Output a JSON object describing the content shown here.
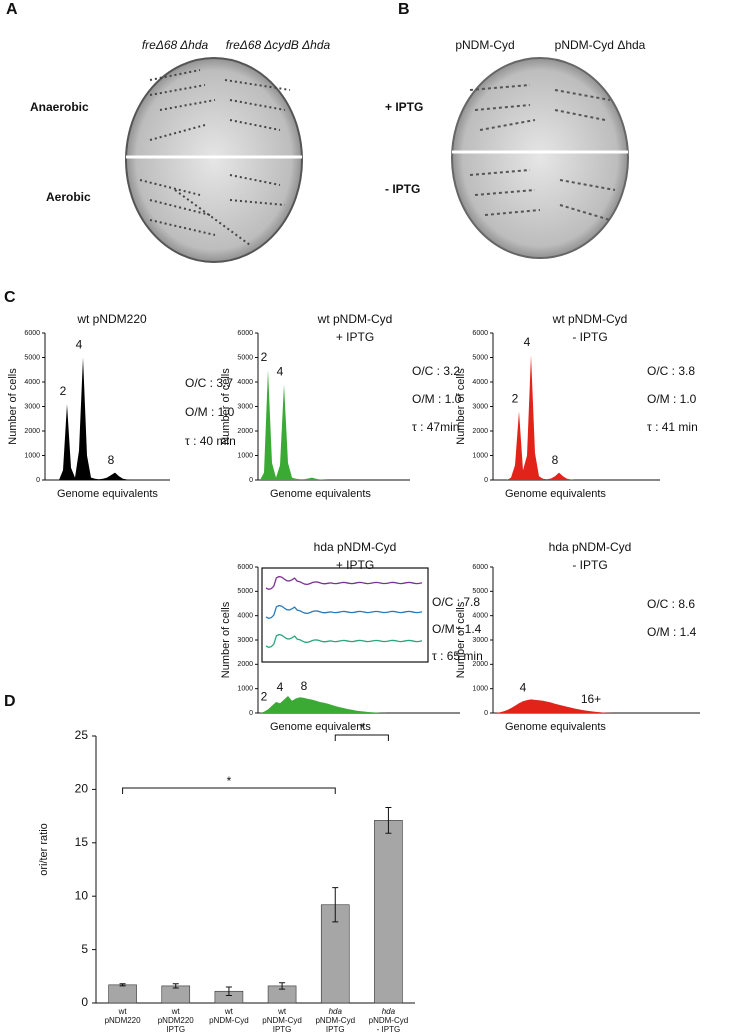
{
  "panels": {
    "A": {
      "label": "A",
      "columns": [
        "freΔ68 Δhda",
        "freΔ68 ΔcydB Δhda"
      ],
      "rows": [
        "Anaerobic",
        "Aerobic"
      ]
    },
    "B": {
      "label": "B",
      "columns": [
        "pNDM-Cyd",
        "pNDM-Cyd Δhda"
      ],
      "rows": [
        "+ IPTG",
        "- IPTG"
      ]
    },
    "C": {
      "label": "C"
    },
    "D": {
      "label": "D"
    }
  },
  "chart_data": [
    {
      "type": "area",
      "title": [
        "wt pNDM220"
      ],
      "ylabel": "Number of cells",
      "xlabel": "Genome equivalents",
      "color": "#000000",
      "ylim": [
        0,
        6000
      ],
      "yticks": [
        0,
        1000,
        2000,
        3000,
        4000,
        5000,
        6000
      ],
      "values": [
        0,
        0,
        0,
        0,
        400,
        3100,
        500,
        100,
        1200,
        5000,
        1000,
        100,
        50,
        30,
        50,
        100,
        200,
        300,
        150,
        50,
        20,
        0,
        0,
        0,
        0,
        0,
        0,
        0,
        0,
        0
      ],
      "peak_labels": [
        "2",
        "4",
        "8"
      ],
      "annotations": [
        "O/C : 3.7",
        "O/M : 1.0",
        "τ : 40 min"
      ]
    },
    {
      "type": "area",
      "title": [
        "wt pNDM-Cyd",
        "+ IPTG"
      ],
      "ylabel": "Number of cells",
      "xlabel": "Genome equivalents",
      "color": "#3aaa35",
      "ylim": [
        0,
        6000
      ],
      "yticks": [
        0,
        1000,
        2000,
        3000,
        4000,
        5000,
        6000
      ],
      "values": [
        0,
        300,
        4500,
        700,
        100,
        600,
        3900,
        700,
        100,
        50,
        30,
        30,
        60,
        100,
        50,
        20,
        10,
        0,
        0,
        0,
        0,
        0,
        0,
        0,
        0,
        0,
        0,
        0,
        0,
        0
      ],
      "peak_labels": [
        "2",
        "4"
      ],
      "annotations": [
        "O/C : 3.2",
        "O/M : 1.0",
        "τ : 47min"
      ]
    },
    {
      "type": "area",
      "title": [
        "wt pNDM-Cyd",
        "- IPTG"
      ],
      "ylabel": "Number of cells",
      "xlabel": "Genome equivalents",
      "color": "#e2231a",
      "ylim": [
        0,
        6000
      ],
      "yticks": [
        0,
        1000,
        2000,
        3000,
        4000,
        5000,
        6000
      ],
      "values": [
        0,
        0,
        0,
        0,
        100,
        600,
        2800,
        400,
        1000,
        5100,
        1100,
        150,
        50,
        30,
        60,
        150,
        300,
        150,
        50,
        20,
        0,
        0,
        0,
        0,
        0,
        0,
        0,
        0,
        0,
        0
      ],
      "peak_labels": [
        "2",
        "4",
        "8"
      ],
      "annotations": [
        "O/C : 3.8",
        "O/M : 1.0",
        "τ : 41 min"
      ]
    },
    {
      "type": "area",
      "title": [
        "hda pNDM-Cyd",
        "+ IPTG"
      ],
      "ylabel": "Number of cells",
      "xlabel": "Genome equivalents",
      "color": "#3aaa35",
      "ylim": [
        0,
        6000
      ],
      "yticks": [
        0,
        1000,
        2000,
        3000,
        4000,
        5000,
        6000
      ],
      "values": [
        0,
        50,
        150,
        300,
        450,
        400,
        550,
        700,
        500,
        600,
        650,
        620,
        580,
        550,
        500,
        450,
        420,
        380,
        330,
        280,
        240,
        200,
        160,
        130,
        100,
        80,
        60,
        40,
        30,
        20,
        10,
        5,
        0,
        0,
        0,
        0,
        0,
        0,
        0,
        0,
        0,
        0,
        0,
        0,
        0,
        0,
        0,
        0,
        0,
        0
      ],
      "peak_labels": [
        "2",
        "4",
        "8"
      ],
      "annotations": [
        "O/C : 7.8",
        "O/M : 1.4",
        "τ : 65 min"
      ]
    },
    {
      "type": "area",
      "title": [
        "hda pNDM-Cyd",
        "- IPTG"
      ],
      "ylabel": "Number of cells",
      "xlabel": "Genome equivalents",
      "color": "#e2231a",
      "ylim": [
        0,
        6000
      ],
      "yticks": [
        0,
        1000,
        2000,
        3000,
        4000,
        5000,
        6000
      ],
      "values": [
        0,
        20,
        60,
        120,
        200,
        300,
        400,
        480,
        530,
        560,
        540,
        520,
        500,
        470,
        430,
        380,
        340,
        300,
        260,
        220,
        180,
        150,
        120,
        90,
        70,
        50,
        35,
        20,
        10,
        5,
        0,
        0,
        0,
        0,
        0,
        0,
        0,
        0,
        0,
        0,
        0,
        0,
        0,
        0,
        0,
        0,
        0,
        0,
        0,
        0
      ],
      "peak_labels": [
        "4",
        "16+"
      ],
      "annotations": [
        "O/C : 8.6",
        "O/M : 1.4"
      ]
    },
    {
      "type": "bar",
      "ylabel": "ori/ter ratio",
      "color": "#a6a6a6",
      "categories": [
        [
          "wt",
          "pNDM220"
        ],
        [
          "wt",
          "pNDM220",
          "IPTG"
        ],
        [
          "wt",
          "pNDM-Cyd"
        ],
        [
          "wt",
          "pNDM-Cyd",
          "IPTG"
        ],
        [
          "hda",
          "pNDM-Cyd",
          "IPTG"
        ],
        [
          "hda",
          "pNDM-Cyd",
          "- IPTG"
        ]
      ],
      "values": [
        1.7,
        1.6,
        1.1,
        1.6,
        9.2,
        17.1
      ],
      "errors": [
        0.1,
        0.2,
        0.4,
        0.3,
        1.6,
        1.2
      ],
      "ylim": [
        0,
        25
      ],
      "yticks": [
        0,
        5,
        10,
        15,
        20,
        25
      ],
      "annotations": [
        "*",
        "*"
      ]
    }
  ]
}
